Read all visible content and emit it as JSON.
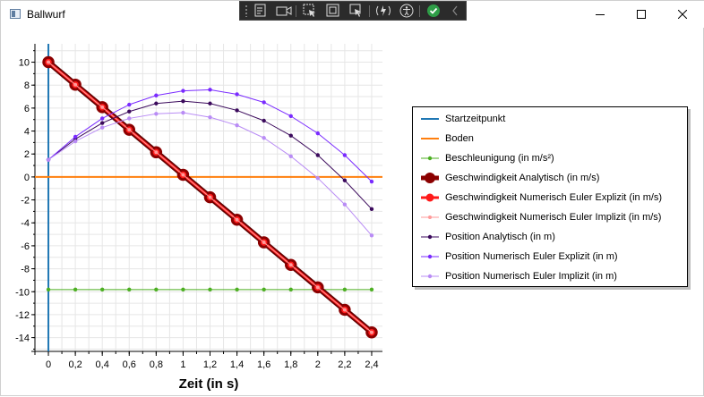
{
  "window": {
    "title": "Ballwurf"
  },
  "chart_data": {
    "type": "line",
    "xlabel": "Zeit (in s)",
    "ylabel": "",
    "xlim": [
      -0.1,
      2.48
    ],
    "ylim": [
      -15.2,
      11.6
    ],
    "x_ticks": [
      0,
      0.2,
      0.4,
      0.6,
      0.8,
      1,
      1.2,
      1.4,
      1.6,
      1.8,
      2,
      2.2,
      2.4
    ],
    "x_tick_labels": [
      "0",
      "0,2",
      "0,4",
      "0,6",
      "0,8",
      "1",
      "1,2",
      "1,4",
      "1,6",
      "1,8",
      "2",
      "2,2",
      "2,4"
    ],
    "y_ticks": [
      10,
      8,
      6,
      4,
      2,
      0,
      -2,
      -4,
      -6,
      -8,
      -10,
      -12,
      -14
    ],
    "y_tick_labels": [
      "10",
      "8",
      "6",
      "4",
      "2",
      "0",
      "-2",
      "-4",
      "-6",
      "-8",
      "-10",
      "-12",
      "-14"
    ],
    "grid": true,
    "legend_position": "right",
    "x": [
      0,
      0.2,
      0.4,
      0.6,
      0.8,
      1,
      1.2,
      1.4,
      1.6,
      1.8,
      2,
      2.2,
      2.4
    ],
    "series": [
      {
        "name": "Startzeitpunkt",
        "kind": "vline",
        "x": 0,
        "color": "#1f77b4",
        "width": 2
      },
      {
        "name": "Boden",
        "kind": "hline",
        "y": 0,
        "color": "#ff7f0e",
        "width": 2
      },
      {
        "name": "Beschleunigung (in m/s²)",
        "kind": "line",
        "color": "#4caf22",
        "width": 1,
        "marker": 2.2,
        "values": [
          -9.81,
          -9.81,
          -9.81,
          -9.81,
          -9.81,
          -9.81,
          -9.81,
          -9.81,
          -9.81,
          -9.81,
          -9.81,
          -9.81,
          -9.81
        ]
      },
      {
        "name": "Geschwindigkeit Analytisch (in m/s)",
        "kind": "line",
        "color": "#8b0000",
        "width": 5,
        "marker": 6,
        "values": [
          10,
          8.04,
          6.08,
          4.11,
          2.15,
          0.19,
          -1.77,
          -3.73,
          -5.7,
          -7.66,
          -9.62,
          -11.58,
          -13.54
        ]
      },
      {
        "name": "Geschwindigkeit Numerisch Euler Explizit (in m/s)",
        "kind": "line",
        "color": "#ff1a1a",
        "width": 3,
        "marker": 4.5,
        "values": [
          10,
          8.04,
          6.08,
          4.11,
          2.15,
          0.19,
          -1.77,
          -3.73,
          -5.7,
          -7.66,
          -9.62,
          -11.58,
          -13.54
        ]
      },
      {
        "name": "Geschwindigkeit Numerisch Euler Implizit (in m/s)",
        "kind": "line",
        "color": "#ff9a9a",
        "width": 1,
        "marker": 2,
        "values": [
          10,
          8.04,
          6.08,
          4.11,
          2.15,
          0.19,
          -1.77,
          -3.73,
          -5.7,
          -7.66,
          -9.62,
          -11.58,
          -13.54
        ]
      },
      {
        "name": "Position Analytisch (in m)",
        "kind": "line",
        "color": "#3b0a5c",
        "width": 1,
        "marker": 2.2,
        "values": [
          1.5,
          3.3,
          4.7,
          5.7,
          6.4,
          6.6,
          6.4,
          5.8,
          4.9,
          3.6,
          1.9,
          -0.3,
          -2.8
        ]
      },
      {
        "name": "Position Numerisch Euler Explizit (in m)",
        "kind": "line",
        "color": "#7a2bff",
        "width": 1,
        "marker": 2.2,
        "values": [
          1.5,
          3.5,
          5.1,
          6.3,
          7.1,
          7.5,
          7.6,
          7.2,
          6.5,
          5.3,
          3.8,
          1.9,
          -0.4
        ]
      },
      {
        "name": "Position Numerisch Euler Implizit (in m)",
        "kind": "line",
        "color": "#b98cf5",
        "width": 1,
        "marker": 2.2,
        "values": [
          1.5,
          3.1,
          4.3,
          5.1,
          5.5,
          5.6,
          5.2,
          4.5,
          3.4,
          1.8,
          -0.1,
          -2.4,
          -5.1
        ]
      }
    ]
  }
}
